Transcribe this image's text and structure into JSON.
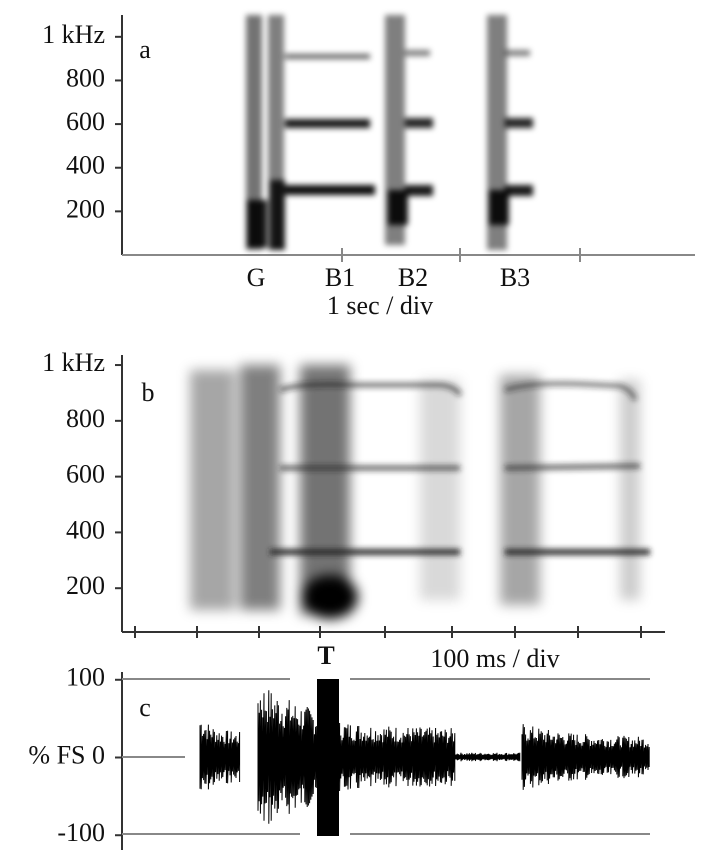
{
  "panels": [
    {
      "label": "a",
      "ylim": [
        0,
        1100
      ],
      "yticks": [
        200,
        400,
        600,
        800,
        {
          "value": 1000,
          "label": "1 kHz"
        }
      ],
      "markers": [
        "G",
        "B1",
        "B2",
        "B3"
      ],
      "x_axis_label": "1 sec / div"
    },
    {
      "label": "b",
      "ylim": [
        43,
        1036
      ],
      "yticks": [
        200,
        400,
        600,
        800,
        {
          "value": 1000,
          "label": "1 kHz"
        }
      ],
      "marker": "T",
      "x_axis_label": "100 ms / div"
    },
    {
      "label": "c",
      "ylim": [
        -110,
        110
      ],
      "yticks": [
        100,
        {
          "value": 0,
          "label": "% FS 0"
        },
        -100
      ]
    }
  ]
}
